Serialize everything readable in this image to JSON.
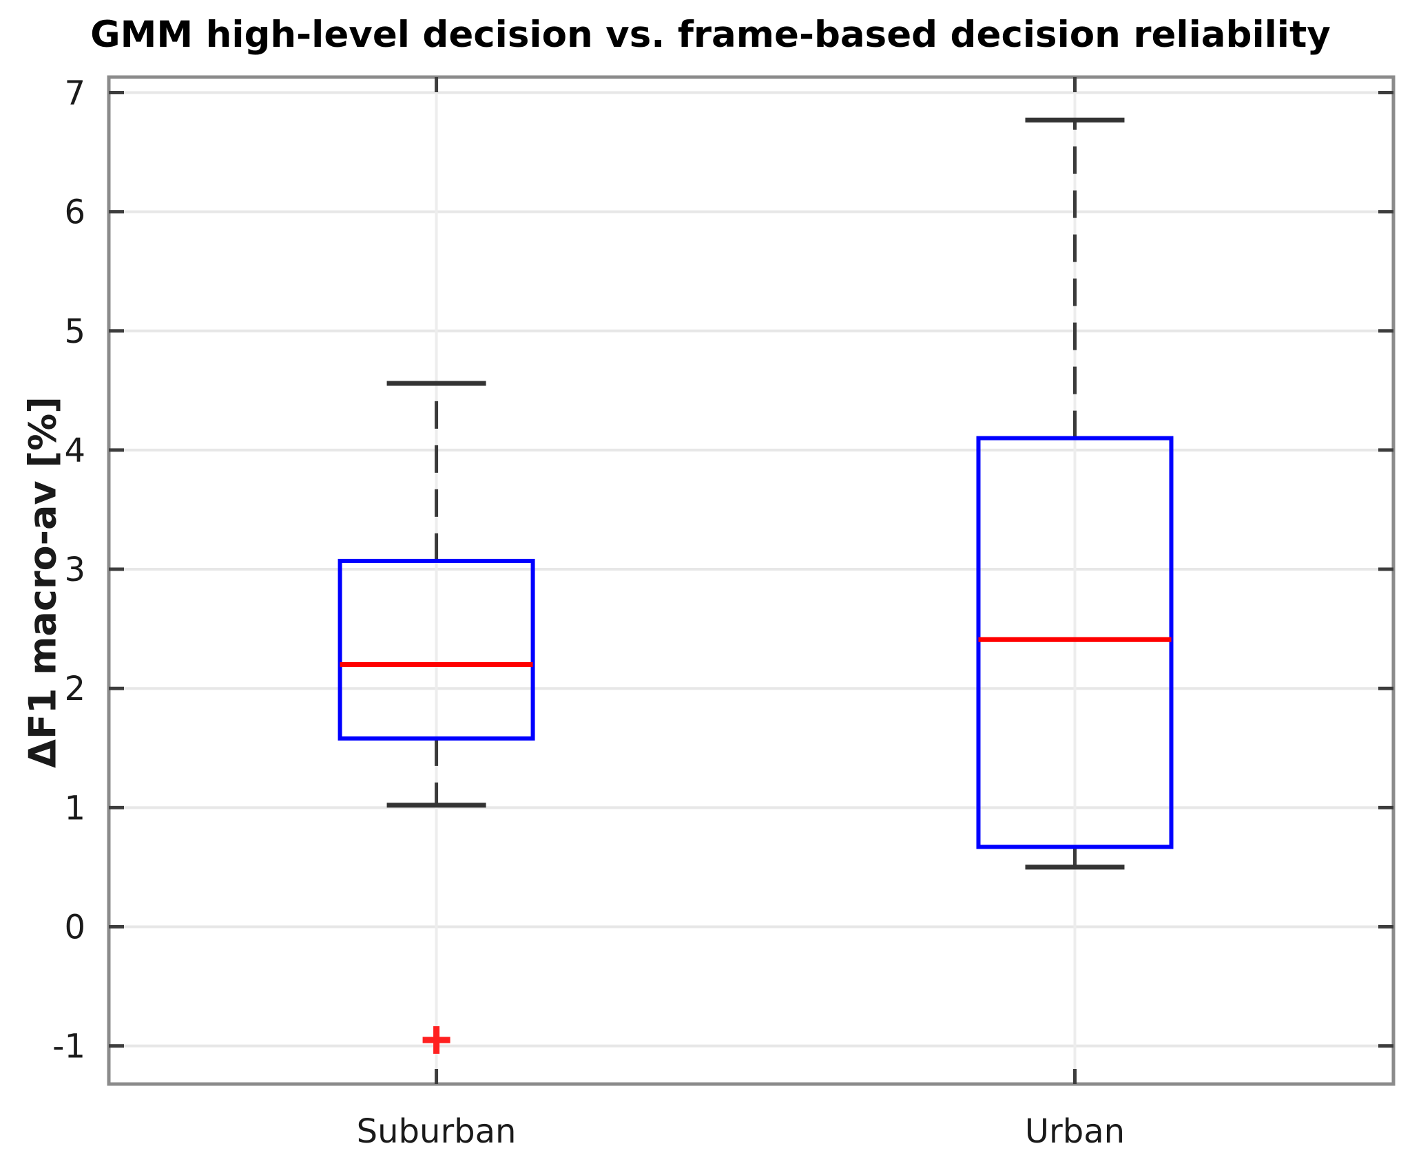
{
  "figure": {
    "title": "GMM high-level decision vs. frame-based decision reliability",
    "ylabel": "ΔF1 macro-av [%]"
  },
  "chart_data": {
    "type": "boxplot",
    "title": "GMM high-level decision vs. frame-based decision reliability",
    "xlabel": "",
    "ylabel": "ΔF1 macro-av [%]",
    "categories": [
      "Suburban",
      "Urban"
    ],
    "series": [
      {
        "category": "Suburban",
        "whisker_low": 1.02,
        "q1": 1.58,
        "median": 2.2,
        "q3": 3.07,
        "whisker_high": 4.56,
        "outliers": [
          -0.95
        ]
      },
      {
        "category": "Urban",
        "whisker_low": 0.5,
        "q1": 0.67,
        "median": 2.41,
        "q3": 4.1,
        "whisker_high": 6.77,
        "outliers": []
      }
    ],
    "ylim": [
      -1.32,
      7.13
    ],
    "yticks": [
      -1,
      0,
      1,
      2,
      3,
      4,
      5,
      6,
      7
    ],
    "grid": true,
    "legend": "none",
    "colors": {
      "box": "#0000ff",
      "median": "#ff0000",
      "whisker": "#3a3a3a",
      "cap": "#333333",
      "outlier": "#ff2020",
      "grid": "#e7e7e7",
      "frame": "#8b8b8b",
      "tick": "#3d3d3d",
      "text": "#1a1a1a"
    }
  }
}
